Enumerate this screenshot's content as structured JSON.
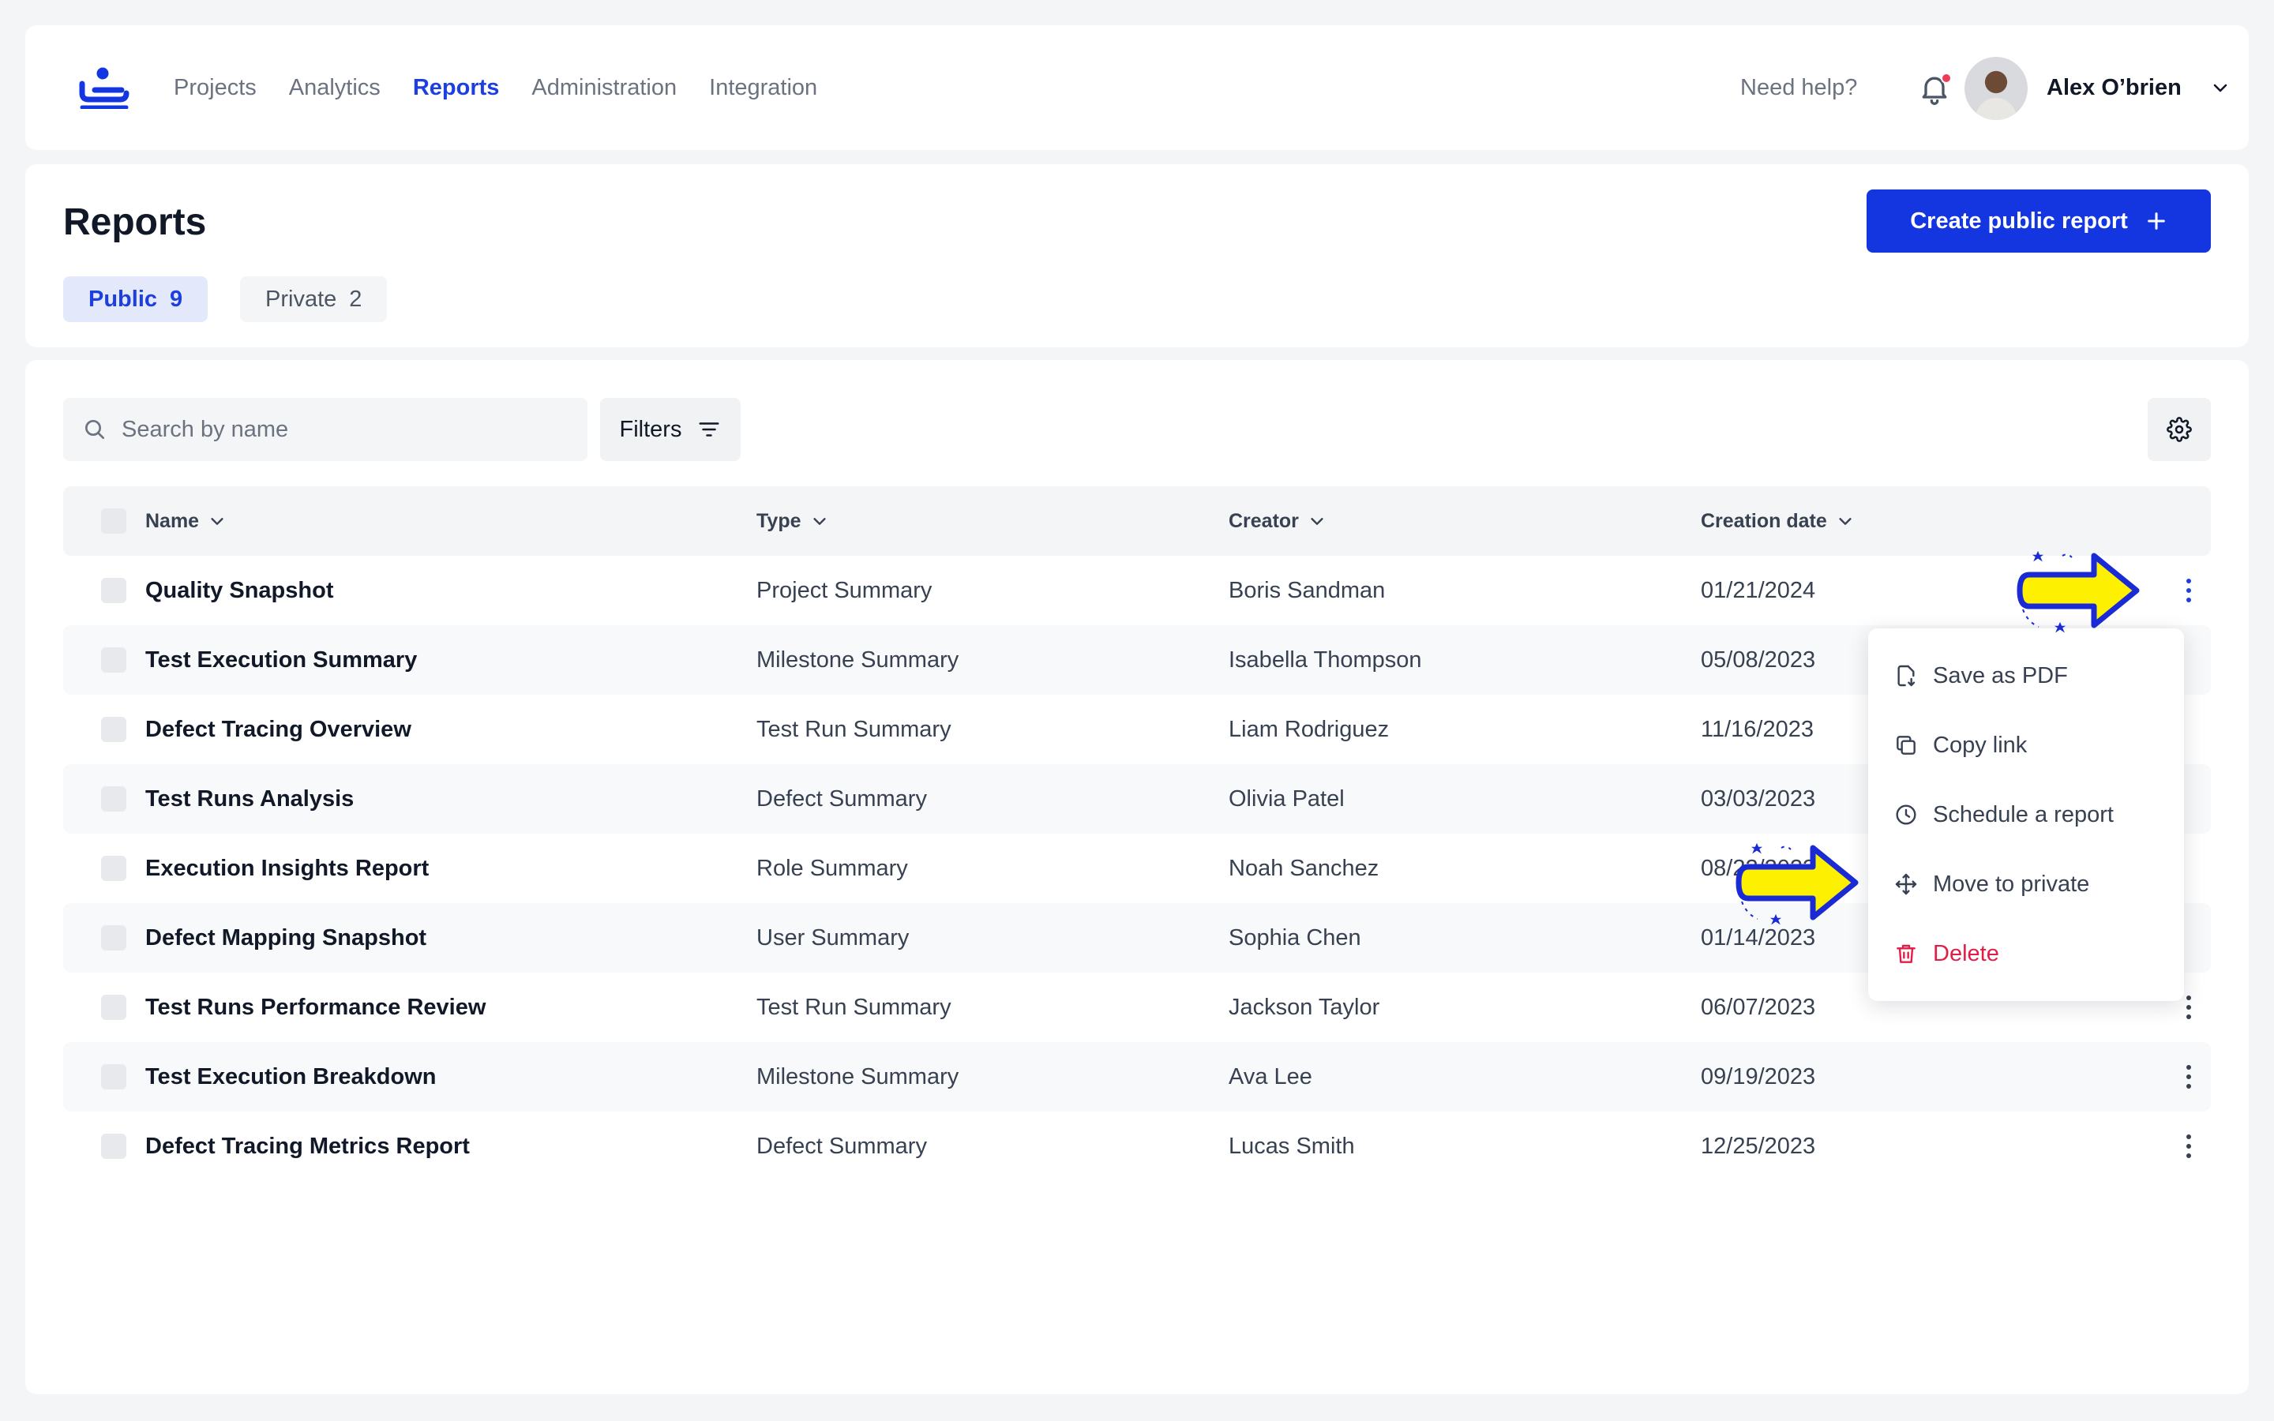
{
  "nav": {
    "items": [
      {
        "label": "Projects",
        "active": false
      },
      {
        "label": "Analytics",
        "active": false
      },
      {
        "label": "Reports",
        "active": true
      },
      {
        "label": "Administration",
        "active": false
      },
      {
        "label": "Integration",
        "active": false
      }
    ],
    "help_label": "Need help?",
    "user_name": "Alex O’brien"
  },
  "header": {
    "title": "Reports",
    "create_button_label": "Create public report",
    "tabs": [
      {
        "label": "Public",
        "count": "9",
        "active": true
      },
      {
        "label": "Private",
        "count": "2",
        "active": false
      }
    ]
  },
  "toolbar": {
    "search_placeholder": "Search by name",
    "filters_label": "Filters"
  },
  "table": {
    "columns": [
      "Name",
      "Type",
      "Creator",
      "Creation date"
    ],
    "rows": [
      {
        "name": "Quality Snapshot",
        "type": "Project Summary",
        "creator": "Boris Sandman",
        "date": "01/21/2024"
      },
      {
        "name": "Test Execution Summary",
        "type": "Milestone Summary",
        "creator": "Isabella Thompson",
        "date": "05/08/2023"
      },
      {
        "name": "Defect Tracing Overview",
        "type": "Test Run Summary",
        "creator": "Liam Rodriguez",
        "date": "11/16/2023"
      },
      {
        "name": "Test Runs Analysis",
        "type": "Defect Summary",
        "creator": "Olivia Patel",
        "date": "03/03/2023"
      },
      {
        "name": "Execution Insights Report",
        "type": "Role Summary",
        "creator": "Noah Sanchez",
        "date": "08/22/2023"
      },
      {
        "name": "Defect Mapping Snapshot",
        "type": "User Summary",
        "creator": "Sophia Chen",
        "date": "01/14/2023"
      },
      {
        "name": "Test Runs Performance Review",
        "type": "Test Run Summary",
        "creator": "Jackson Taylor",
        "date": "06/07/2023"
      },
      {
        "name": "Test Execution Breakdown",
        "type": "Milestone Summary",
        "creator": "Ava Lee",
        "date": "09/19/2023"
      },
      {
        "name": "Defect Tracing Metrics Report",
        "type": "Defect Summary",
        "creator": "Lucas Smith",
        "date": "12/25/2023"
      }
    ]
  },
  "menu": {
    "items": [
      {
        "label": "Save as PDF",
        "icon": "file-download-icon"
      },
      {
        "label": "Copy link",
        "icon": "copy-icon"
      },
      {
        "label": "Schedule a report",
        "icon": "clock-icon"
      },
      {
        "label": "Move to private",
        "icon": "move-icon"
      },
      {
        "label": "Delete",
        "icon": "trash-icon",
        "danger": true
      }
    ]
  },
  "colors": {
    "accent": "#1436e0",
    "danger": "#e11d48",
    "pointer_fill": "#fdf000",
    "pointer_stroke": "#1a2ad4"
  }
}
